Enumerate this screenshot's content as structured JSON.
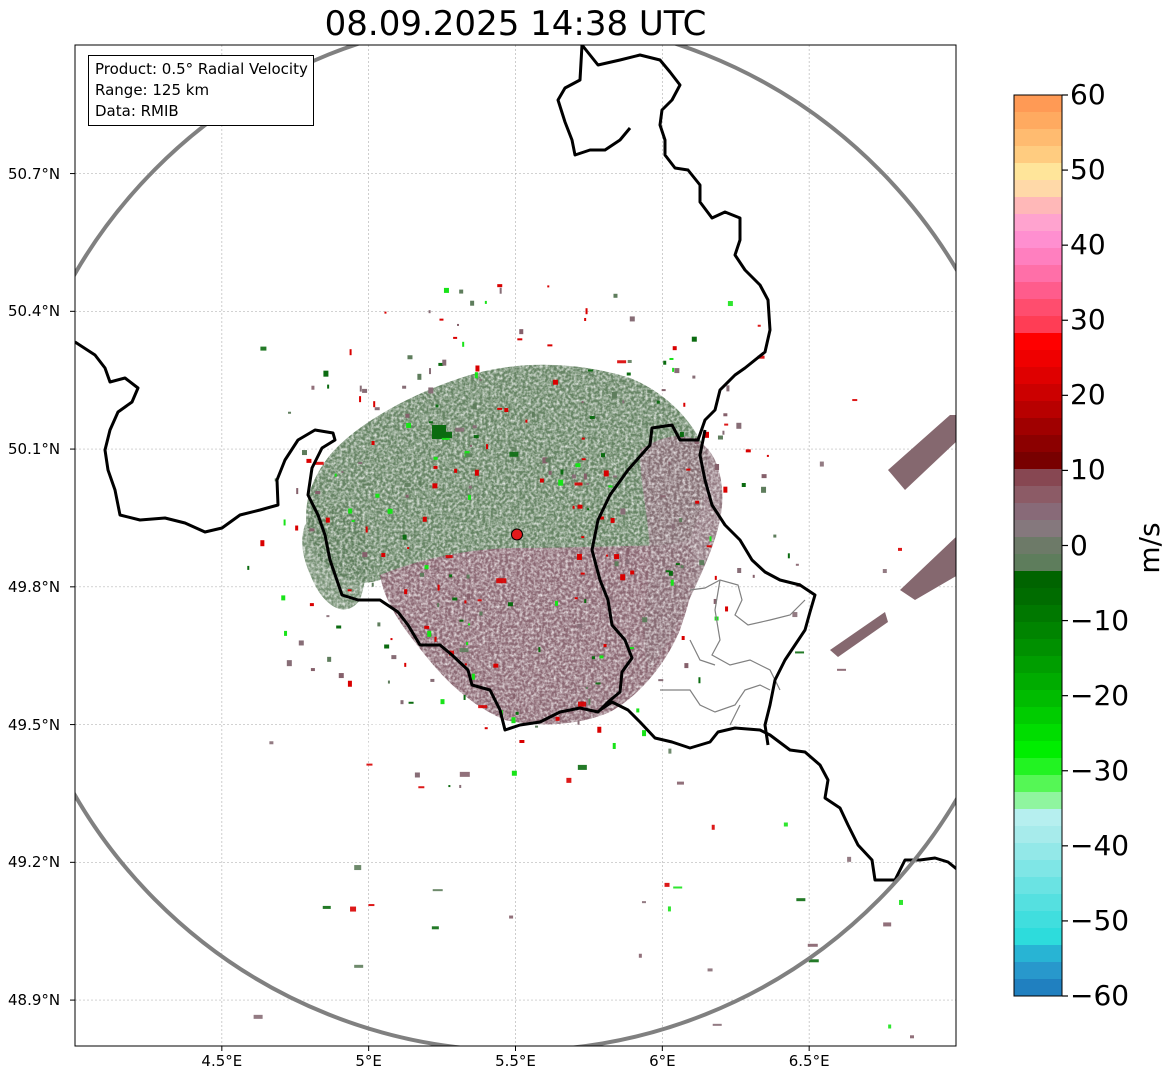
{
  "title": "08.09.2025 14:38 UTC",
  "info_box": {
    "product": "Product: 0.5° Radial Velocity",
    "range": "Range: 125 km",
    "source": "Data: RMIB"
  },
  "axes": {
    "lat_labels": [
      "50.7°N",
      "50.4°N",
      "50.1°N",
      "49.8°N",
      "49.5°N",
      "49.2°N",
      "48.9°N"
    ],
    "lat_values": [
      50.7,
      50.4,
      50.1,
      49.8,
      49.5,
      49.2,
      48.9
    ],
    "lon_labels": [
      "4.5°E",
      "5°E",
      "5.5°E",
      "6°E",
      "6.5°E"
    ],
    "lon_values": [
      4.5,
      5.0,
      5.5,
      6.0,
      6.5
    ],
    "lon_range": [
      4.0,
      7.0
    ],
    "lat_range": [
      48.8,
      50.98
    ],
    "grid": true
  },
  "radar": {
    "site_lon": 5.505,
    "site_lat": 49.914,
    "range_km": 125,
    "site_marker_color": "#e31a1c"
  },
  "colorbar": {
    "unit": "m/s",
    "min": -60,
    "max": 60,
    "tick_labels": [
      "60",
      "50",
      "40",
      "30",
      "20",
      "10",
      "0",
      "−10",
      "−20",
      "−30",
      "−40",
      "−50",
      "−60"
    ],
    "tick_values": [
      60,
      50,
      40,
      30,
      20,
      10,
      0,
      -10,
      -20,
      -30,
      -40,
      -50,
      -60
    ],
    "colors_top_to_bottom": [
      "#ff9a55",
      "#ffaa60",
      "#ffbb70",
      "#ffcc80",
      "#ffe59a",
      "#ffd9a8",
      "#ffb8b8",
      "#ffa3cf",
      "#ff8fd0",
      "#ff7fbf",
      "#ff6fa8",
      "#ff5c8c",
      "#ff4d6e",
      "#ff3d55",
      "#ff0000",
      "#ef0000",
      "#df0000",
      "#cc0000",
      "#b80000",
      "#a00000",
      "#8c0000",
      "#780000",
      "#874752",
      "#8c5b66",
      "#886a78",
      "#85787d",
      "#6d7a68",
      "#5e7d5c",
      "#006400",
      "#006c00",
      "#007800",
      "#008400",
      "#009000",
      "#009e00",
      "#00ac00",
      "#00bc00",
      "#00cc00",
      "#00dd00",
      "#00ee00",
      "#22f322",
      "#55f755",
      "#8ff59f",
      "#b6efef",
      "#a7ebeb",
      "#93e8e8",
      "#7fe6e6",
      "#6ae3e3",
      "#55e0e0",
      "#40dede",
      "#2ddcdc",
      "#28b4d4",
      "#2898cc",
      "#2080c0"
    ]
  },
  "echo_colors": {
    "approaching": "#5e7d5c",
    "receding": "#85606b",
    "neutral": "#876d76",
    "strong_in": "#0b6b10",
    "strong_out": "#d90000",
    "bright_in": "#18e318"
  }
}
